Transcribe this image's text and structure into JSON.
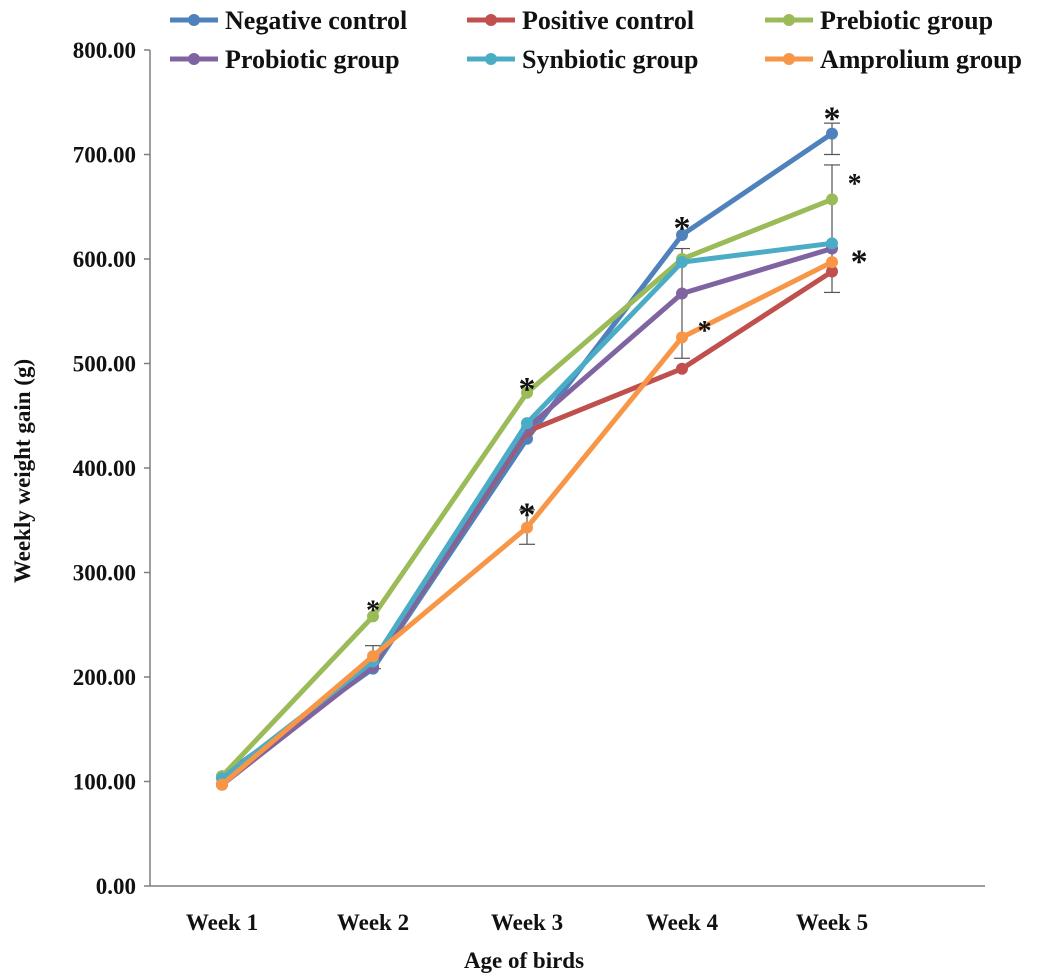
{
  "chart_data": {
    "type": "line",
    "title": "",
    "xlabel": "Age of birds",
    "ylabel": "Weekly weight gain (g)",
    "ylim": [
      0,
      800
    ],
    "y_ticks": [
      "0.00",
      "100.00",
      "200.00",
      "300.00",
      "400.00",
      "500.00",
      "600.00",
      "700.00",
      "800.00"
    ],
    "categories": [
      "Week 1",
      "Week 2",
      "Week 3",
      "Week 4",
      "Week 5"
    ],
    "legend_position": "top",
    "grid": false,
    "series": [
      {
        "name": "Negative control",
        "color": "#4f81bd",
        "values": [
          105,
          208,
          428,
          623,
          720
        ]
      },
      {
        "name": "Positive control",
        "color": "#c0504d",
        "values": [
          97,
          210,
          435,
          495,
          588
        ]
      },
      {
        "name": "Prebiotic group",
        "color": "#9bbb59",
        "values": [
          105,
          258,
          472,
          600,
          657
        ]
      },
      {
        "name": "Probiotic group",
        "color": "#8064a2",
        "values": [
          97,
          210,
          438,
          567,
          610
        ]
      },
      {
        "name": "Synbiotic group",
        "color": "#4bacc6",
        "values": [
          103,
          215,
          443,
          597,
          615
        ]
      },
      {
        "name": "Amprolium group",
        "color": "#f79646",
        "values": [
          97,
          220,
          343,
          525,
          597
        ]
      }
    ],
    "error_bars": [
      {
        "category": "Week 2",
        "low": 208,
        "high": 230
      },
      {
        "category": "Week 3",
        "low": 327,
        "high": 360
      },
      {
        "category": "Week 4",
        "low": 505,
        "high": 610
      },
      {
        "category": "Week 5",
        "low": 568,
        "high": 690
      },
      {
        "category": "Week 5",
        "low": 700,
        "high": 730
      }
    ],
    "annotations": [
      {
        "text": "*",
        "category": "Week 2",
        "y": 270,
        "size": "small"
      },
      {
        "text": "*",
        "category": "Week 3",
        "y": 483,
        "size": "large"
      },
      {
        "text": "*",
        "category": "Week 3",
        "y": 363,
        "size": "large"
      },
      {
        "text": "*",
        "category": "Week 4",
        "y": 637,
        "size": "large"
      },
      {
        "text": "*",
        "category": "Week 4",
        "y": 537,
        "size": "small",
        "dx": 0.15
      },
      {
        "text": "*",
        "category": "Week 5",
        "y": 742,
        "size": "large"
      },
      {
        "text": "*",
        "category": "Week 5",
        "y": 678,
        "size": "small",
        "dx": 0.15
      },
      {
        "text": "*",
        "category": "Week 5",
        "y": 605,
        "size": "large",
        "dx": 0.18
      }
    ]
  }
}
